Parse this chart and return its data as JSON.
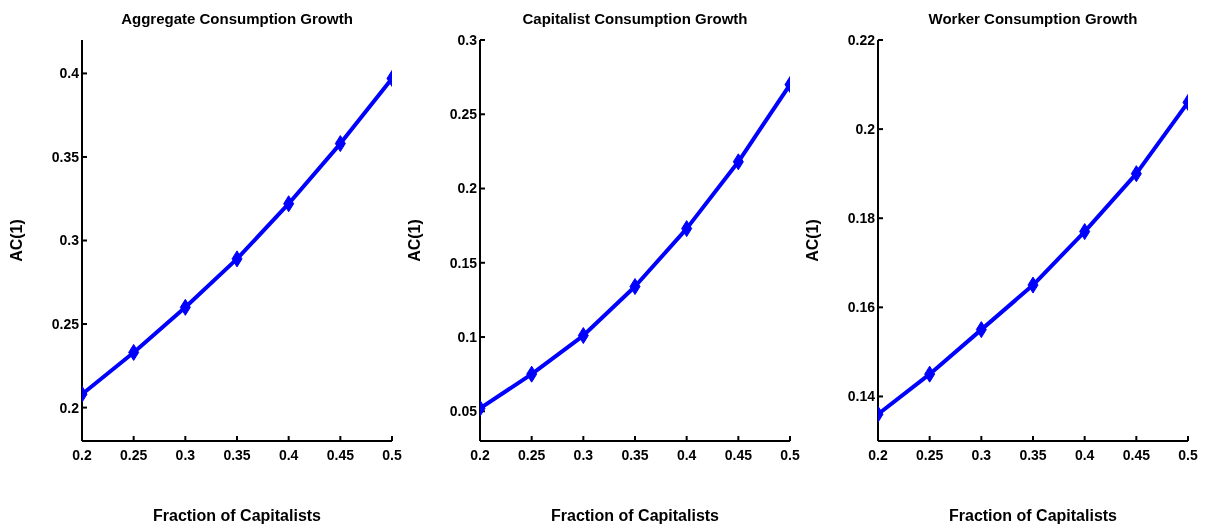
{
  "chart_data": [
    {
      "type": "line",
      "title": "Aggregate Consumption Growth",
      "xlabel": "Fraction of Capitalists",
      "ylabel": "AC(1)",
      "x": [
        0.2,
        0.25,
        0.3,
        0.35,
        0.4,
        0.45,
        0.5
      ],
      "series": [
        {
          "color": "#0000ff",
          "values": [
            0.208,
            0.233,
            0.26,
            0.289,
            0.322,
            0.358,
            0.397
          ]
        }
      ],
      "xlim": [
        0.2,
        0.5
      ],
      "xticks": [
        0.2,
        0.25,
        0.3,
        0.35,
        0.4,
        0.45,
        0.5
      ],
      "ylim": [
        0.18,
        0.42
      ],
      "yticks": [
        0.2,
        0.25,
        0.3,
        0.35,
        0.4
      ],
      "grid": false,
      "legend": false,
      "marker": "diamond",
      "line_style": "solid"
    },
    {
      "type": "line",
      "title": "Capitalist Consumption Growth",
      "xlabel": "Fraction of Capitalists",
      "ylabel": "AC(1)",
      "x": [
        0.2,
        0.25,
        0.3,
        0.35,
        0.4,
        0.45,
        0.5
      ],
      "series": [
        {
          "color": "#0000ff",
          "values": [
            0.052,
            0.075,
            0.101,
            0.134,
            0.173,
            0.218,
            0.27
          ]
        }
      ],
      "xlim": [
        0.2,
        0.5
      ],
      "xticks": [
        0.2,
        0.25,
        0.3,
        0.35,
        0.4,
        0.45,
        0.5
      ],
      "ylim": [
        0.03,
        0.3
      ],
      "yticks": [
        0.05,
        0.1,
        0.15,
        0.2,
        0.25,
        0.3
      ],
      "grid": false,
      "legend": false,
      "marker": "diamond",
      "line_style": "solid"
    },
    {
      "type": "line",
      "title": "Worker Consumption Growth",
      "xlabel": "Fraction of Capitalists",
      "ylabel": "AC(1)",
      "x": [
        0.2,
        0.25,
        0.3,
        0.35,
        0.4,
        0.45,
        0.5
      ],
      "series": [
        {
          "color": "#0000ff",
          "values": [
            0.136,
            0.145,
            0.155,
            0.165,
            0.177,
            0.19,
            0.206
          ]
        }
      ],
      "xlim": [
        0.2,
        0.5
      ],
      "xticks": [
        0.2,
        0.25,
        0.3,
        0.35,
        0.4,
        0.45,
        0.5
      ],
      "ylim": [
        0.13,
        0.22
      ],
      "yticks": [
        0.14,
        0.16,
        0.18,
        0.2,
        0.22
      ],
      "grid": false,
      "legend": false,
      "marker": "diamond",
      "line_style": "solid"
    }
  ]
}
